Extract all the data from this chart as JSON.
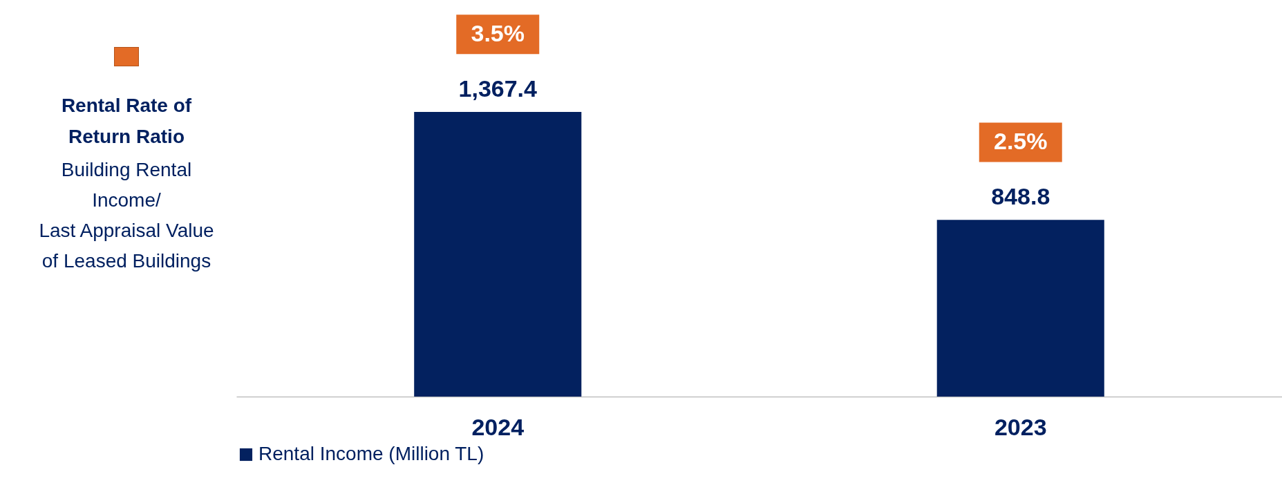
{
  "chart_data": {
    "type": "bar",
    "categories": [
      "2024",
      "2023"
    ],
    "series": [
      {
        "name": "Rental Income (Million TL)",
        "color": "#03215f",
        "values": [
          1367.4,
          848.8
        ],
        "value_labels": [
          "1,367.4",
          "848.8"
        ]
      }
    ],
    "tick_labels": "x",
    "grid": false,
    "legend": "bottom",
    "annotations": [
      "Rental Rate of Return Ratio",
      "Building Rental\nIncome/\nLast Appraisal Value\nof Leased Buildings",
      "3.5%",
      "2.5%"
    ]
  }
}
